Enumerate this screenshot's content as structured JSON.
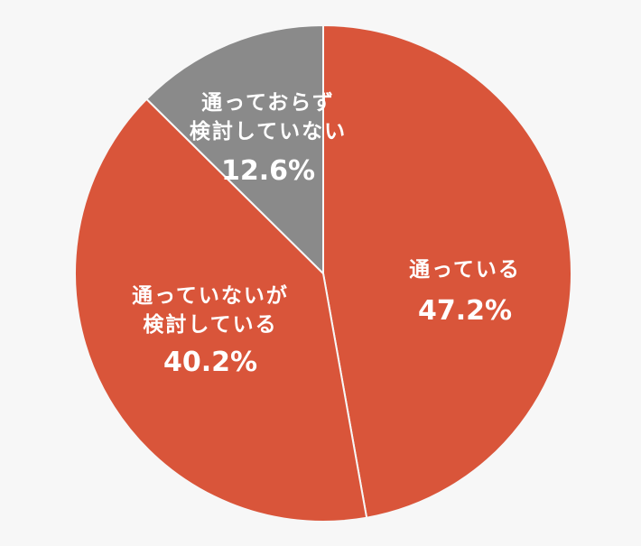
{
  "chart_data": {
    "type": "pie",
    "title": "",
    "slices": [
      {
        "label": "通っている",
        "value": 47.2,
        "display": "47.2%",
        "color": "#D9553A"
      },
      {
        "label": "通っていないが検討している",
        "label_lines": [
          "通っていないが",
          "検討している"
        ],
        "value": 40.2,
        "display": "40.2%",
        "color": "#D9553A"
      },
      {
        "label": "通っておらず検討していない",
        "label_lines": [
          "通っておらず",
          "検討していない"
        ],
        "value": 12.6,
        "display": "12.6%",
        "color": "#8A8A8A"
      }
    ],
    "start_angle_deg": 0,
    "direction": "clockwise",
    "legend": "none",
    "labels_inside": true
  },
  "colors": {
    "background": "#F7F7F7",
    "divider": "#F7F7F7"
  }
}
